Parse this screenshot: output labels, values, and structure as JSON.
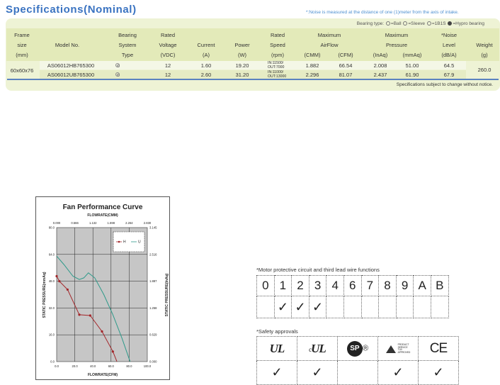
{
  "title": "Specifications(Nominal)",
  "noise_note": "*:Noise is measured at the distance of one (1)meter from the axis of intake.",
  "bearing_legend": {
    "prefix": "Bearing type:",
    "ball": "=Ball",
    "sleeve": "=Sleeve",
    "b1s": "=1B1S",
    "hypro": "=Hypro bearing"
  },
  "headers": {
    "frame": [
      "Frame",
      "size",
      "(mm)"
    ],
    "model": "Model No.",
    "bearing": [
      "Bearing",
      "System",
      "Type"
    ],
    "voltage": [
      "Rated",
      "Voltage",
      "(VDC)"
    ],
    "current": [
      "Current",
      "(A)"
    ],
    "power": [
      "Power",
      "(W)"
    ],
    "speed": [
      "Rated",
      "Speed",
      "(rpm)"
    ],
    "airflow": [
      "Maximum",
      "AirFlow"
    ],
    "airflow_units": [
      "(CMM)",
      "(CFM)"
    ],
    "pressure": [
      "Maximum",
      "Pressure"
    ],
    "pressure_units": [
      "(InAq)",
      "(mmAq)"
    ],
    "noise": [
      "*Noise",
      "Level",
      "(dB/A)"
    ],
    "weight": [
      "Weight",
      "(g)"
    ]
  },
  "frame_size": "60x60x76",
  "weight": "260.0",
  "rows": [
    {
      "model": "AS06012HB765300",
      "voltage": "12",
      "current": "1.60",
      "power": "19.20",
      "speed_in": "IN:11500/",
      "speed_out": "OUT:7000",
      "cmm": "1.882",
      "cfm": "66.54",
      "inaq": "2.008",
      "mmaq": "51.00",
      "noise": "64.5"
    },
    {
      "model": "AS06012UB765300",
      "voltage": "12",
      "current": "2.60",
      "power": "31.20",
      "speed_in": "IN:11000/",
      "speed_out": "OUT:13000",
      "cmm": "2.296",
      "cfm": "81.07",
      "inaq": "2.437",
      "mmaq": "61.90",
      "noise": "67.9"
    }
  ],
  "footer_note": "Specifications subject to change without notice.",
  "chart_data": {
    "type": "line",
    "title": "Fan Performance Curve",
    "xlabel": "FLOWRATE(CFM)",
    "x2label": "FLOWRATE(CMM)",
    "ylabel": "STATIC PRESSURE(mmAq)",
    "y2label": "STATIC PRESSURE(InAq)",
    "xlim": [
      0,
      100
    ],
    "ylim": [
      0,
      80
    ],
    "x_ticks": [
      "0.0",
      "20.0",
      "40.0",
      "60.0",
      "80.0",
      "100.0"
    ],
    "y_ticks": [
      "0.0",
      "16.0",
      "32.0",
      "48.0",
      "64.0",
      "80.0"
    ],
    "x2_ticks": [
      "0.000",
      "0.566",
      "1.132",
      "1.698",
      "2.264",
      "2.830"
    ],
    "y2_ticks": [
      "0.000",
      "0.629",
      "1.258",
      "1.887",
      "2.516",
      "3.145"
    ],
    "grid": true,
    "legend_position": "top-right",
    "series": [
      {
        "name": "H",
        "color": "#a3262a",
        "marker": "circle",
        "x": [
          0,
          3,
          12,
          25,
          37,
          50,
          62,
          66.5
        ],
        "y": [
          51,
          48,
          43,
          28,
          27.5,
          18,
          6,
          0
        ]
      },
      {
        "name": "U",
        "color": "#2e9a8a",
        "marker": "none",
        "x": [
          0,
          8,
          18,
          25,
          30,
          35,
          42,
          52,
          62,
          72,
          81
        ],
        "y": [
          63,
          58,
          51,
          49,
          50,
          53,
          50,
          40,
          28,
          14,
          0
        ]
      }
    ]
  },
  "motor": {
    "title": "*Motor protective circuit and third lead wire functions",
    "headers": [
      "0",
      "1",
      "2",
      "3",
      "4",
      "6",
      "7",
      "8",
      "9",
      "A",
      "B"
    ],
    "checks": [
      "",
      "✓",
      "✓",
      "✓",
      "",
      "",
      "",
      "",
      "",
      "",
      ""
    ]
  },
  "safety": {
    "title": "*Safety approvals",
    "items": [
      "UL",
      "cUL",
      "CSA",
      "TUV",
      "CE"
    ],
    "cul_prefix": "c",
    "csa_text": "SP",
    "reg_mark": "®",
    "tuv_text": [
      "PRODUCT",
      "SERVICE",
      "TUV",
      "APPROVED"
    ],
    "checks": [
      "✓",
      "✓",
      "",
      "✓",
      "✓"
    ]
  }
}
